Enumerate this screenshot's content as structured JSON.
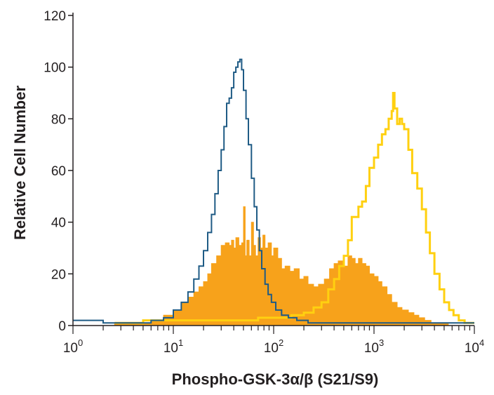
{
  "chart_data": {
    "type": "histogram",
    "xlabel": "Phospho-GSK-3α/β (S21/S9)",
    "ylabel": "Relative Cell Number",
    "x_scale": "log",
    "xlim": [
      1,
      10000
    ],
    "ylim": [
      0,
      120
    ],
    "y_ticks": [
      0,
      20,
      40,
      60,
      80,
      100,
      120
    ],
    "x_tick_labels": [
      {
        "base": "10",
        "exp": "0"
      },
      {
        "base": "10",
        "exp": "1"
      },
      {
        "base": "10",
        "exp": "2"
      },
      {
        "base": "10",
        "exp": "3"
      },
      {
        "base": "10",
        "exp": "4"
      }
    ],
    "grid": false,
    "series": [
      {
        "style": "filled",
        "color": "#f7a21b",
        "points": [
          [
            2.6,
            1
          ],
          [
            4,
            1
          ],
          [
            6,
            2
          ],
          [
            8,
            4
          ],
          [
            10,
            6
          ],
          [
            12,
            9
          ],
          [
            14,
            11
          ],
          [
            16,
            13
          ],
          [
            18,
            15
          ],
          [
            20,
            17
          ],
          [
            22,
            20
          ],
          [
            24,
            24
          ],
          [
            27,
            27
          ],
          [
            30,
            31
          ],
          [
            33,
            32
          ],
          [
            36,
            31
          ],
          [
            38,
            33
          ],
          [
            40,
            30
          ],
          [
            42,
            34
          ],
          [
            45,
            31
          ],
          [
            48,
            32
          ],
          [
            50,
            46
          ],
          [
            52,
            27
          ],
          [
            54,
            33
          ],
          [
            57,
            27
          ],
          [
            60,
            40
          ],
          [
            63,
            31
          ],
          [
            66,
            27
          ],
          [
            70,
            34
          ],
          [
            74,
            30
          ],
          [
            78,
            35
          ],
          [
            82,
            30
          ],
          [
            88,
            32
          ],
          [
            95,
            27
          ],
          [
            100,
            30
          ],
          [
            110,
            26
          ],
          [
            120,
            22
          ],
          [
            130,
            23
          ],
          [
            145,
            21
          ],
          [
            160,
            22
          ],
          [
            180,
            18
          ],
          [
            200,
            19
          ],
          [
            220,
            16
          ],
          [
            250,
            15
          ],
          [
            280,
            16
          ],
          [
            320,
            18
          ],
          [
            360,
            22
          ],
          [
            400,
            24
          ],
          [
            440,
            25
          ],
          [
            500,
            23
          ],
          [
            550,
            27
          ],
          [
            600,
            26
          ],
          [
            650,
            24
          ],
          [
            700,
            26
          ],
          [
            760,
            24
          ],
          [
            830,
            23
          ],
          [
            900,
            20
          ],
          [
            1000,
            19
          ],
          [
            1100,
            17
          ],
          [
            1200,
            15
          ],
          [
            1350,
            12
          ],
          [
            1500,
            9
          ],
          [
            1700,
            7
          ],
          [
            1900,
            6
          ],
          [
            2200,
            5
          ],
          [
            2500,
            4
          ],
          [
            2800,
            3
          ],
          [
            3200,
            2
          ],
          [
            3700,
            1
          ],
          [
            4500,
            1
          ],
          [
            5500,
            1
          ]
        ]
      },
      {
        "style": "outline",
        "color": "#ffd010",
        "points": [
          [
            2.6,
            1
          ],
          [
            5,
            2
          ],
          [
            10,
            2
          ],
          [
            20,
            2
          ],
          [
            40,
            2
          ],
          [
            70,
            3
          ],
          [
            100,
            3
          ],
          [
            150,
            4
          ],
          [
            200,
            5
          ],
          [
            250,
            7
          ],
          [
            300,
            9
          ],
          [
            350,
            14
          ],
          [
            400,
            18
          ],
          [
            450,
            23
          ],
          [
            500,
            27
          ],
          [
            550,
            33
          ],
          [
            600,
            42
          ],
          [
            650,
            42
          ],
          [
            700,
            46
          ],
          [
            760,
            48
          ],
          [
            830,
            54
          ],
          [
            900,
            61
          ],
          [
            1000,
            65
          ],
          [
            1100,
            70
          ],
          [
            1200,
            74
          ],
          [
            1300,
            76
          ],
          [
            1400,
            80
          ],
          [
            1500,
            83
          ],
          [
            1550,
            90
          ],
          [
            1600,
            84
          ],
          [
            1700,
            78
          ],
          [
            1800,
            80
          ],
          [
            1900,
            78
          ],
          [
            2000,
            76
          ],
          [
            2200,
            68
          ],
          [
            2400,
            59
          ],
          [
            2700,
            53
          ],
          [
            3000,
            45
          ],
          [
            3300,
            36
          ],
          [
            3600,
            28
          ],
          [
            4000,
            20
          ],
          [
            4500,
            14
          ],
          [
            5000,
            9
          ],
          [
            5600,
            6
          ],
          [
            6200,
            4
          ],
          [
            7000,
            2
          ],
          [
            8000,
            1
          ],
          [
            10000,
            1
          ]
        ]
      },
      {
        "style": "outline",
        "color": "#1f5b85",
        "points": [
          [
            1,
            2
          ],
          [
            2,
            1
          ],
          [
            4,
            1
          ],
          [
            6,
            2
          ],
          [
            8,
            3
          ],
          [
            10,
            6
          ],
          [
            12,
            9
          ],
          [
            14,
            13
          ],
          [
            16,
            18
          ],
          [
            18,
            23
          ],
          [
            20,
            29
          ],
          [
            22,
            36
          ],
          [
            24,
            43
          ],
          [
            26,
            51
          ],
          [
            28,
            60
          ],
          [
            30,
            68
          ],
          [
            32,
            77
          ],
          [
            34,
            86
          ],
          [
            36,
            88
          ],
          [
            38,
            92
          ],
          [
            40,
            98
          ],
          [
            42,
            100
          ],
          [
            44,
            102
          ],
          [
            46,
            103
          ],
          [
            48,
            99
          ],
          [
            50,
            91
          ],
          [
            53,
            80
          ],
          [
            56,
            70
          ],
          [
            60,
            57
          ],
          [
            64,
            46
          ],
          [
            68,
            37
          ],
          [
            72,
            29
          ],
          [
            76,
            22
          ],
          [
            82,
            16
          ],
          [
            88,
            12
          ],
          [
            95,
            9
          ],
          [
            105,
            6
          ],
          [
            120,
            4
          ],
          [
            140,
            3
          ],
          [
            170,
            2
          ],
          [
            220,
            1
          ],
          [
            400,
            1
          ],
          [
            1000,
            1
          ],
          [
            10000,
            1
          ]
        ]
      }
    ]
  }
}
